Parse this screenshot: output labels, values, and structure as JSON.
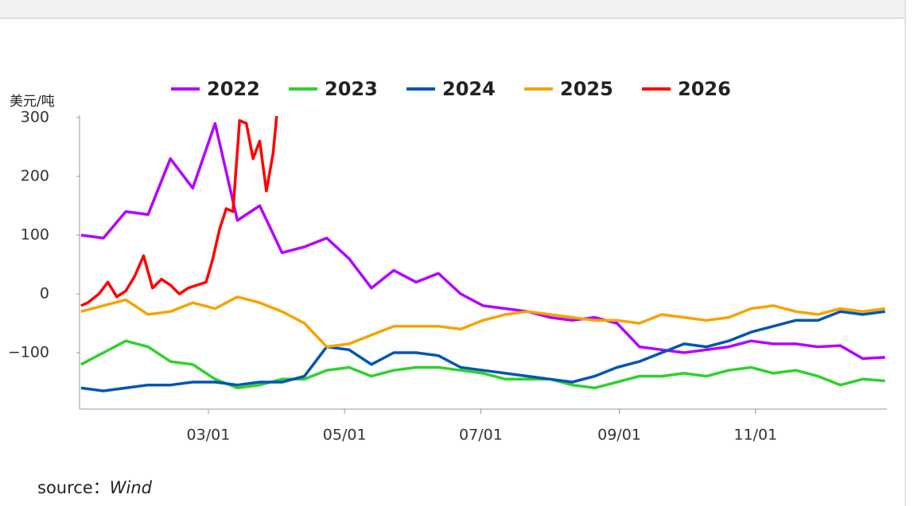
{
  "chart_data": {
    "type": "line",
    "y_label": "美元/吨",
    "source_label": "source：",
    "source": "Wind",
    "xlim": [
      0,
      365
    ],
    "xticks": [
      {
        "value": 59,
        "label": "03/01"
      },
      {
        "value": 120,
        "label": "05/01"
      },
      {
        "value": 181,
        "label": "07/01"
      },
      {
        "value": 243,
        "label": "09/01"
      },
      {
        "value": 304,
        "label": "11/01"
      }
    ],
    "ylim": [
      -195,
      300
    ],
    "yticks": [
      {
        "value": -100,
        "label": "−100"
      },
      0,
      100,
      200,
      300
    ],
    "legend": "top",
    "x": [
      2,
      12,
      22,
      32,
      42,
      52,
      62,
      72,
      82,
      92,
      102,
      112,
      122,
      132,
      142,
      152,
      162,
      172,
      182,
      192,
      202,
      212,
      222,
      232,
      242,
      252,
      262,
      272,
      282,
      292,
      302,
      312,
      322,
      332,
      342,
      352,
      362
    ],
    "series": [
      {
        "name": "2022",
        "color": "#b400ff",
        "values": [
          100,
          95,
          140,
          135,
          230,
          180,
          290,
          125,
          150,
          70,
          80,
          95,
          60,
          10,
          40,
          20,
          35,
          0,
          -20,
          -25,
          -30,
          -40,
          -45,
          -40,
          -50,
          -90,
          -95,
          -100,
          -95,
          -90,
          -80,
          -85,
          -85,
          -90,
          -88,
          -110,
          -108
        ]
      },
      {
        "name": "2023",
        "color": "#2ed12e",
        "values": [
          -120,
          -100,
          -80,
          -90,
          -115,
          -120,
          -145,
          -160,
          -155,
          -145,
          -145,
          -130,
          -125,
          -140,
          -130,
          -125,
          -125,
          -130,
          -135,
          -145,
          -145,
          -145,
          -155,
          -160,
          -150,
          -140,
          -140,
          -135,
          -140,
          -130,
          -125,
          -135,
          -130,
          -140,
          -155,
          -145,
          -148
        ]
      },
      {
        "name": "2024",
        "color": "#0055b3",
        "values": [
          -160,
          -165,
          -160,
          -155,
          -155,
          -150,
          -150,
          -155,
          -150,
          -150,
          -140,
          -90,
          -95,
          -120,
          -100,
          -100,
          -105,
          -125,
          -130,
          -135,
          -140,
          -145,
          -150,
          -140,
          -125,
          -115,
          -100,
          -85,
          -90,
          -80,
          -65,
          -55,
          -45,
          -45,
          -30,
          -35,
          -30
        ]
      },
      {
        "name": "2025",
        "color": "#f5a300",
        "values": [
          -30,
          -20,
          -10,
          -35,
          -30,
          -15,
          -25,
          -5,
          -15,
          -30,
          -50,
          -90,
          -85,
          -70,
          -55,
          -55,
          -55,
          -60,
          -45,
          -35,
          -30,
          -35,
          -40,
          -45,
          -45,
          -50,
          -35,
          -40,
          -45,
          -40,
          -25,
          -20,
          -30,
          -35,
          -25,
          -30,
          -25
        ]
      },
      {
        "name": "2026",
        "color": "#ff0000",
        "x": [
          2,
          5,
          10,
          14,
          18,
          22,
          26,
          30,
          34,
          38,
          42,
          46,
          50,
          54,
          58,
          61,
          64,
          67,
          70,
          73,
          76,
          79,
          82,
          85,
          88,
          90,
          94,
          98
        ],
        "values": [
          -20,
          -15,
          0,
          20,
          -5,
          5,
          30,
          65,
          10,
          25,
          15,
          0,
          10,
          15,
          20,
          60,
          110,
          145,
          140,
          295,
          290,
          230,
          260,
          175,
          240,
          320,
          null,
          300
        ]
      }
    ]
  }
}
